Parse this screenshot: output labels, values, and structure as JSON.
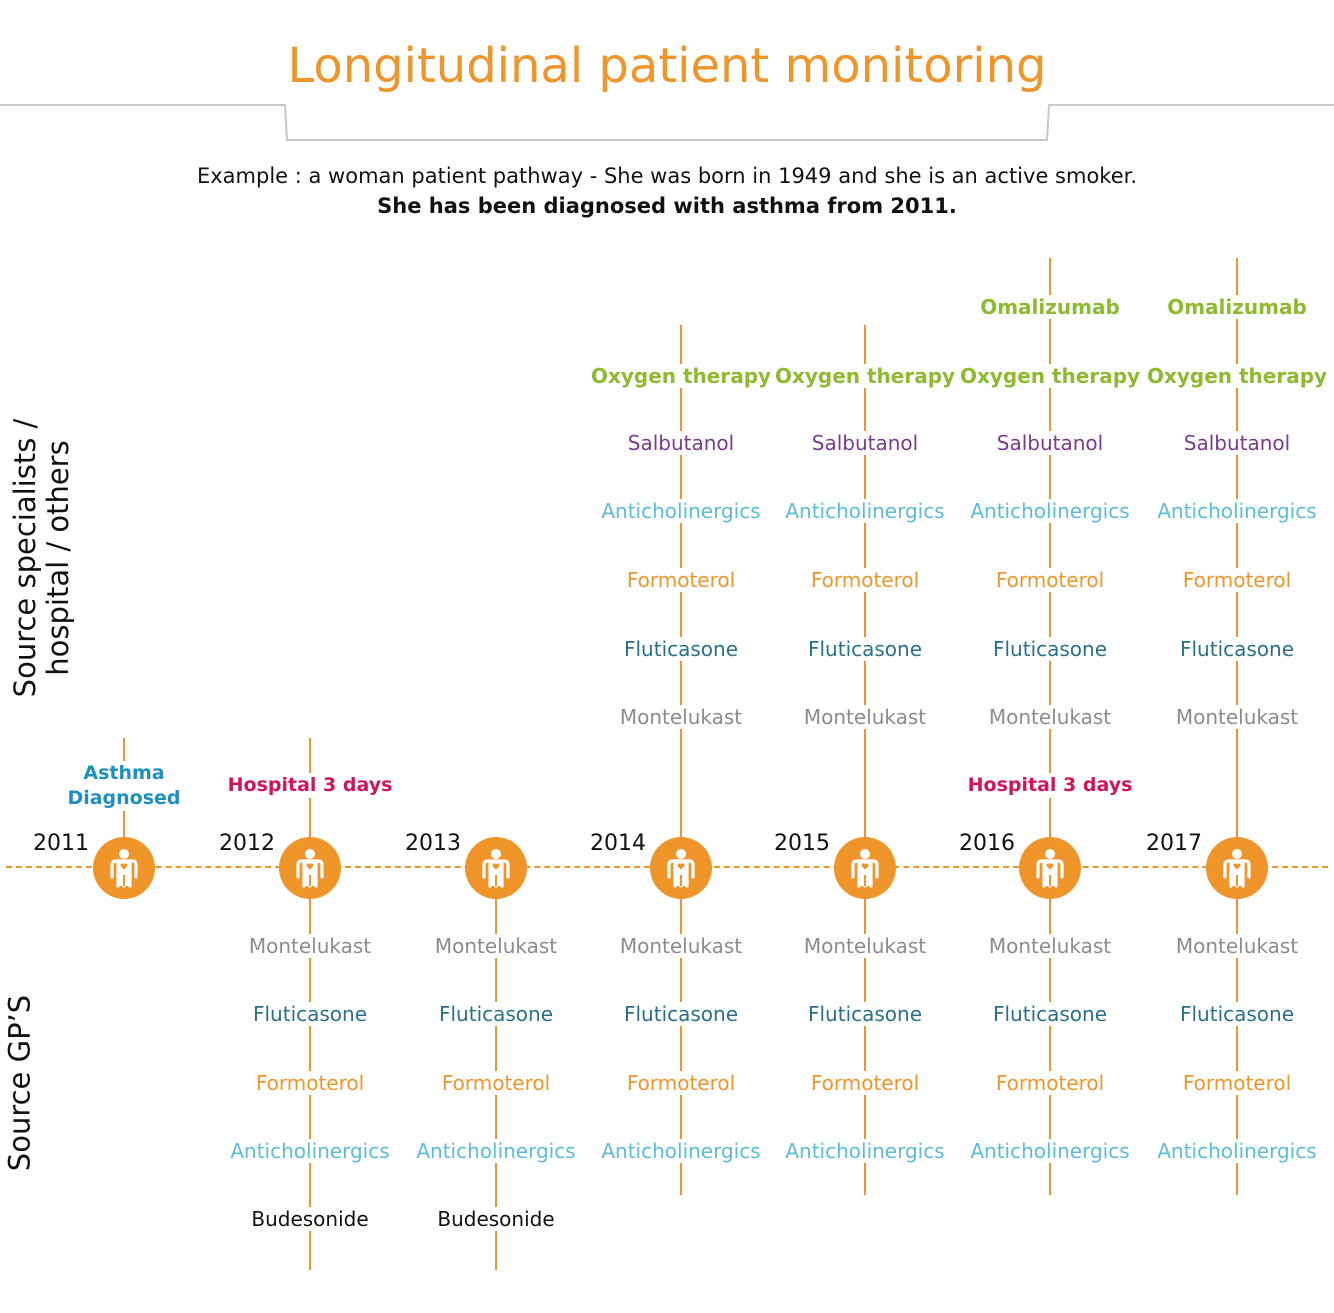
{
  "title": "Longitudinal patient monitoring",
  "subtitle_line1": "Example : a woman patient pathway - She was born in 1949 and she is an active smoker.",
  "subtitle_line2": "She has been diagnosed with asthma from 2011.",
  "side_labels": {
    "specialists_line1": "Source specialists /",
    "specialists_line2": "hospital / others",
    "gps": "Source GP’S"
  },
  "colors": {
    "accent": "#f0952a",
    "Oxygen therapy": "#8dbb2f",
    "Omalizumab": "#8dbb2f",
    "Salbutanol": "#7b3a8f",
    "Anticholinergics": "#5bbdd8",
    "Formoterol": "#f0952a",
    "Fluticasone": "#2b7089",
    "Montelukast": "#8c8c8c",
    "Budesonide": "#111111",
    "asthma_event": "#1f8fc2",
    "hospital_event": "#d2145a"
  },
  "icon": "patient-icon",
  "years": [
    {
      "year": "2011",
      "event": "Asthma\nDiagnosed",
      "event_type": "asthma",
      "specialist": [],
      "gp": []
    },
    {
      "year": "2012",
      "event": "Hospital 3 days",
      "event_type": "hospital",
      "specialist": [],
      "gp": [
        "Montelukast",
        "Fluticasone",
        "Formoterol",
        "Anticholinergics",
        "Budesonide"
      ]
    },
    {
      "year": "2013",
      "event": "",
      "specialist": [],
      "gp": [
        "Montelukast",
        "Fluticasone",
        "Formoterol",
        "Anticholinergics",
        "Budesonide"
      ]
    },
    {
      "year": "2014",
      "event": "",
      "specialist": [
        "Montelukast",
        "Fluticasone",
        "Formoterol",
        "Anticholinergics",
        "Salbutanol",
        "Oxygen therapy"
      ],
      "gp": [
        "Montelukast",
        "Fluticasone",
        "Formoterol",
        "Anticholinergics"
      ]
    },
    {
      "year": "2015",
      "event": "",
      "specialist": [
        "Montelukast",
        "Fluticasone",
        "Formoterol",
        "Anticholinergics",
        "Salbutanol",
        "Oxygen therapy"
      ],
      "gp": [
        "Montelukast",
        "Fluticasone",
        "Formoterol",
        "Anticholinergics"
      ]
    },
    {
      "year": "2016",
      "event": "Hospital 3 days",
      "event_type": "hospital",
      "specialist": [
        "Montelukast",
        "Fluticasone",
        "Formoterol",
        "Anticholinergics",
        "Salbutanol",
        "Oxygen therapy",
        "Omalizumab"
      ],
      "gp": [
        "Montelukast",
        "Fluticasone",
        "Formoterol",
        "Anticholinergics"
      ]
    },
    {
      "year": "2017",
      "event": "",
      "specialist": [
        "Montelukast",
        "Fluticasone",
        "Formoterol",
        "Anticholinergics",
        "Salbutanol",
        "Oxygen therapy",
        "Omalizumab"
      ],
      "gp": [
        "Montelukast",
        "Fluticasone",
        "Formoterol",
        "Anticholinergics"
      ]
    }
  ]
}
